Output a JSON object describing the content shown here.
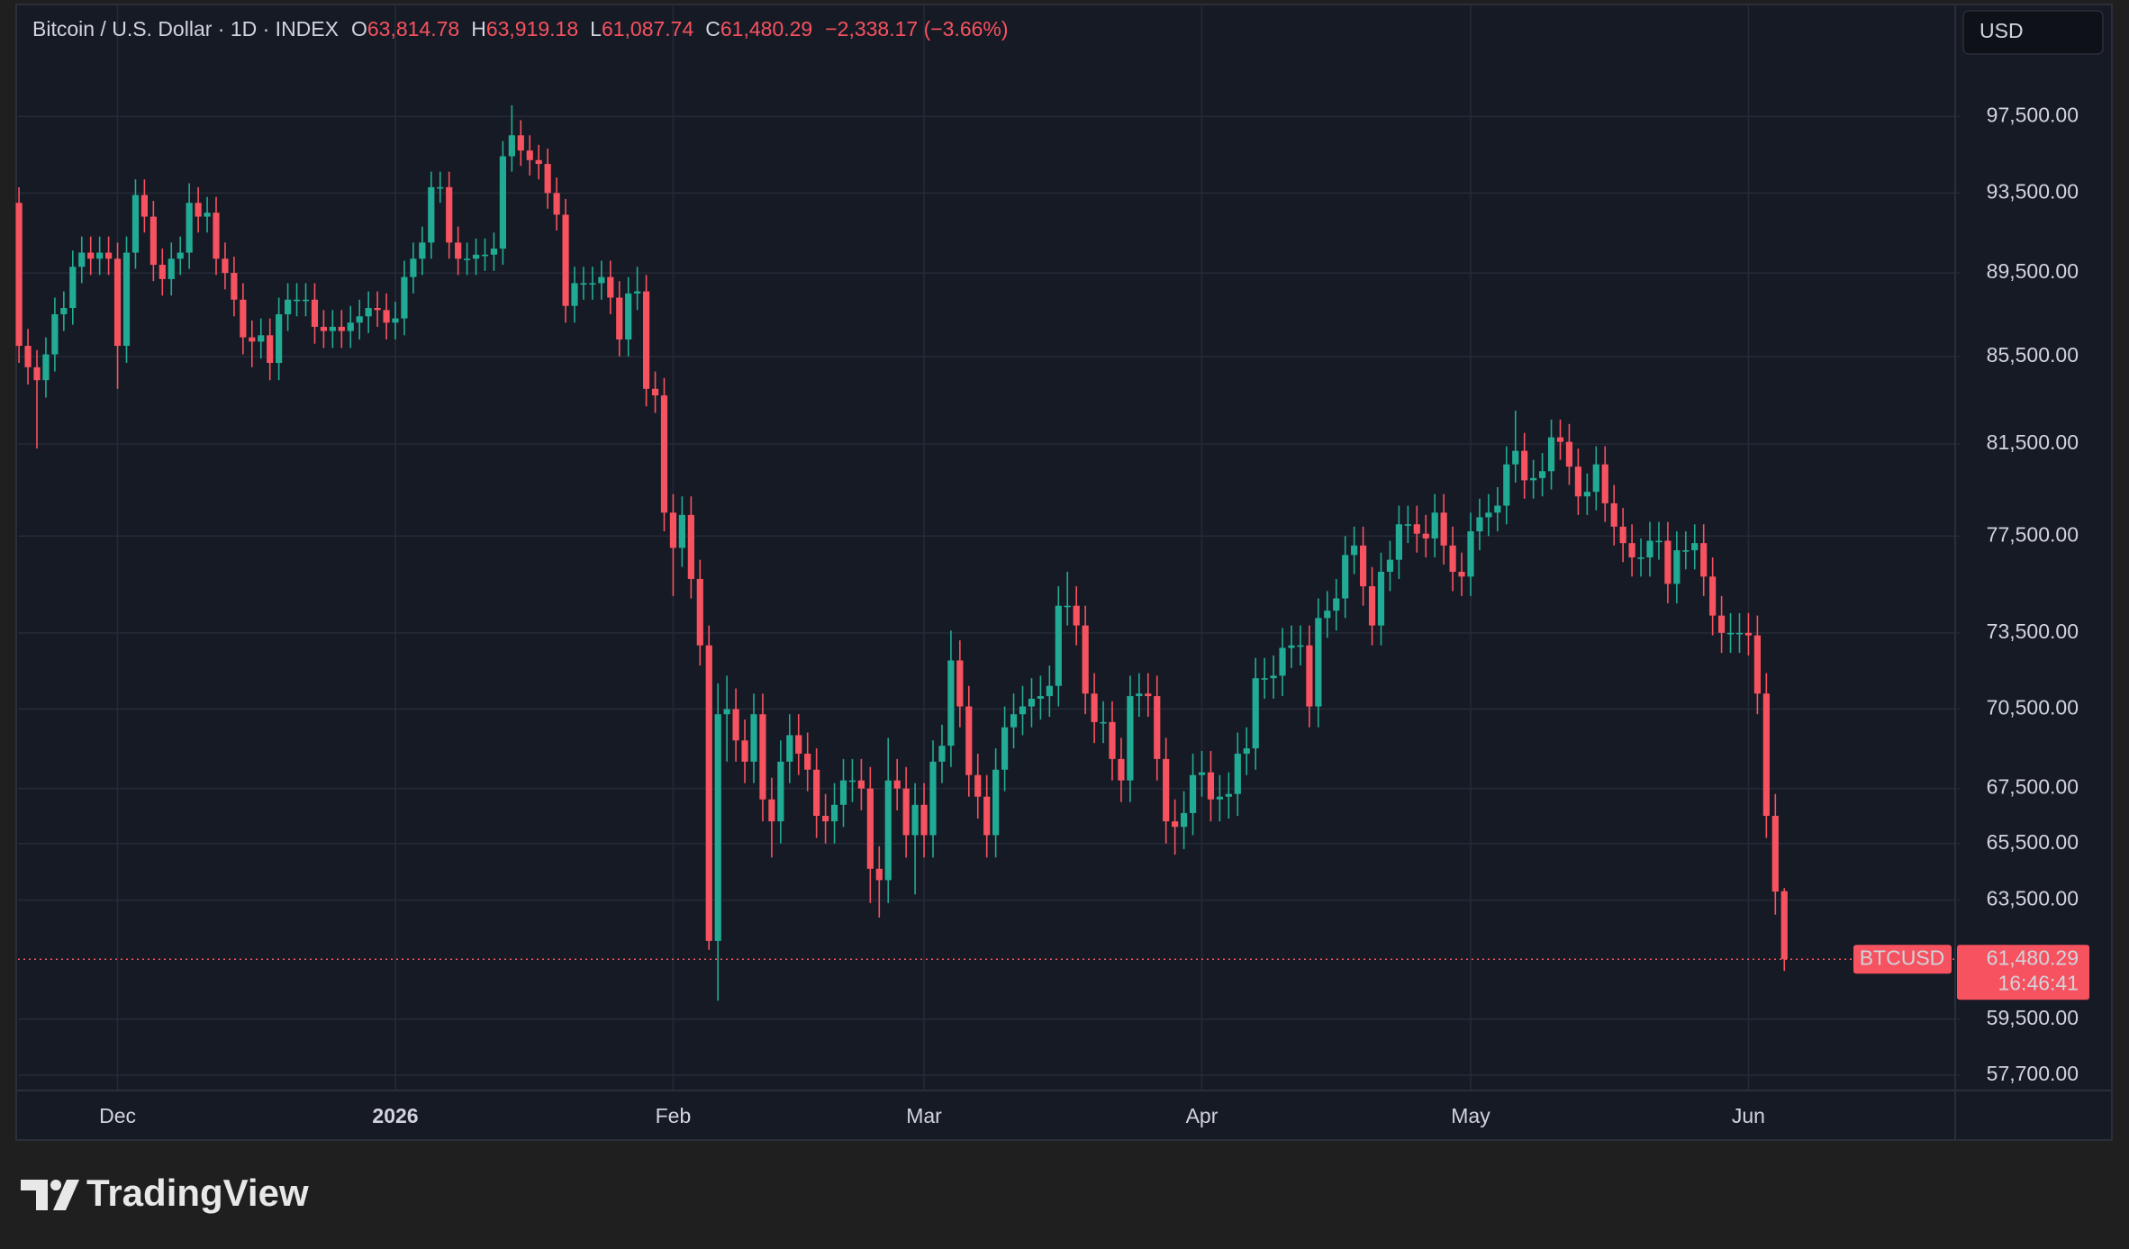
{
  "chart_data": {
    "type": "candlestick",
    "title": "Bitcoin / U.S. Dollar · 1D · INDEX",
    "ohlc_legend": [
      {
        "label": "O",
        "value": "63,814.78"
      },
      {
        "label": "H",
        "value": "63,919.18"
      },
      {
        "label": "L",
        "value": "61,087.74"
      },
      {
        "label": "C",
        "value": "61,480.29"
      }
    ],
    "change": "−2,338.17 (−3.66%)",
    "currency": "USD",
    "last_price_label": {
      "symbol": "BTCUSD",
      "price": "61,480.29",
      "countdown": "16:46:41"
    },
    "brand": "TradingView",
    "up_color": "#22ab94",
    "down_color": "#f7525f",
    "log_scale": true,
    "grid": true,
    "ylim": [
      57220,
      103660
    ],
    "yticks": [
      {
        "value": 97500,
        "label": "97,500.00"
      },
      {
        "value": 93500,
        "label": "93,500.00"
      },
      {
        "value": 89500,
        "label": "89,500.00"
      },
      {
        "value": 85500,
        "label": "85,500.00"
      },
      {
        "value": 81500,
        "label": "81,500.00"
      },
      {
        "value": 77500,
        "label": "77,500.00"
      },
      {
        "value": 73500,
        "label": "73,500.00"
      },
      {
        "value": 70500,
        "label": "70,500.00"
      },
      {
        "value": 67500,
        "label": "67,500.00"
      },
      {
        "value": 65500,
        "label": "65,500.00"
      },
      {
        "value": 63500,
        "label": "63,500.00"
      },
      {
        "value": 59500,
        "label": "59,500.00"
      },
      {
        "value": 57700,
        "label": "57,700.00"
      }
    ],
    "categories": [
      null,
      null,
      null,
      null,
      null,
      null,
      null,
      null,
      null,
      null,
      null,
      "Dec",
      null,
      null,
      null,
      null,
      null,
      null,
      null,
      null,
      null,
      null,
      null,
      null,
      null,
      null,
      null,
      null,
      null,
      null,
      null,
      null,
      null,
      null,
      null,
      null,
      null,
      null,
      null,
      null,
      null,
      null,
      "2026",
      null,
      null,
      null,
      null,
      null,
      null,
      null,
      null,
      null,
      null,
      null,
      null,
      null,
      null,
      null,
      null,
      null,
      null,
      null,
      null,
      null,
      null,
      null,
      null,
      null,
      null,
      null,
      null,
      null,
      null,
      "Feb",
      null,
      null,
      null,
      null,
      null,
      null,
      null,
      null,
      null,
      null,
      null,
      null,
      null,
      null,
      null,
      null,
      null,
      null,
      null,
      null,
      null,
      null,
      null,
      null,
      null,
      null,
      null,
      "Mar",
      null,
      null,
      null,
      null,
      null,
      null,
      null,
      null,
      null,
      null,
      null,
      null,
      null,
      null,
      null,
      null,
      null,
      null,
      null,
      null,
      null,
      null,
      null,
      null,
      null,
      null,
      null,
      null,
      null,
      null,
      "Apr",
      null,
      null,
      null,
      null,
      null,
      null,
      null,
      null,
      null,
      null,
      null,
      null,
      null,
      null,
      null,
      null,
      null,
      null,
      null,
      null,
      null,
      null,
      null,
      null,
      null,
      null,
      null,
      null,
      null,
      "May",
      null,
      null,
      null,
      null,
      null,
      null,
      null,
      null,
      null,
      null,
      null,
      null,
      null,
      null,
      null,
      null,
      null,
      null,
      null,
      null,
      null,
      null,
      null,
      null,
      null,
      null,
      null,
      null,
      null,
      null,
      "Jun",
      null,
      null,
      null,
      null
    ],
    "open": [
      93000,
      86000,
      85000,
      84400,
      85600,
      87500,
      87800,
      89800,
      90500,
      90200,
      90500,
      90200,
      86000,
      90500,
      93400,
      92300,
      89900,
      89200,
      90200,
      90500,
      93000,
      92300,
      92500,
      90200,
      89500,
      88200,
      86400,
      86200,
      86500,
      85200,
      87500,
      88200,
      88200,
      88200,
      86900,
      86700,
      86900,
      86700,
      87100,
      87400,
      87800,
      87700,
      87100,
      87300,
      89300,
      90200,
      91000,
      93800,
      93800,
      91000,
      90200,
      90200,
      90400,
      90400,
      90700,
      95400,
      96500,
      95700,
      95200,
      95000,
      93500,
      92400,
      87900,
      89000,
      89000,
      89000,
      89300,
      88300,
      86300,
      88500,
      88600,
      84000,
      83700,
      78500,
      77000,
      78400,
      75700,
      73000,
      62100,
      70300,
      70500,
      69300,
      68500,
      70300,
      67100,
      66300,
      68500,
      69500,
      68800,
      68200,
      66500,
      66300,
      66900,
      67800,
      67800,
      67500,
      64600,
      64200,
      67800,
      67500,
      65800,
      66900,
      65800,
      68500,
      69100,
      72400,
      70600,
      68000,
      67200,
      65800,
      68200,
      69800,
      70300,
      70600,
      70900,
      71000,
      71400,
      74600,
      74600,
      73800,
      71100,
      70000,
      70000,
      68600,
      67800,
      71000,
      71100,
      71000,
      68600,
      66300,
      66100,
      66600,
      68000,
      68100,
      67100,
      67200,
      67300,
      68800,
      69000,
      71700,
      71700,
      71800,
      72900,
      73000,
      73000,
      70600,
      74100,
      74400,
      74900,
      76700,
      77100,
      75400,
      73800,
      76000,
      76500,
      78000,
      78000,
      77600,
      77400,
      78500,
      77100,
      76000,
      75800,
      77700,
      78300,
      78500,
      78800,
      80600,
      81200,
      79900,
      80000,
      80300,
      81800,
      81600,
      80500,
      79200,
      79400,
      80600,
      78900,
      77900,
      77200,
      76600,
      76600,
      77300,
      77300,
      75500,
      76900,
      76900,
      77200,
      75800,
      74200,
      73500,
      73500,
      73500,
      73400,
      71100,
      66500,
      63814.78
    ],
    "high": [
      93800,
      86800,
      85800,
      86400,
      88300,
      88600,
      90600,
      91300,
      91300,
      91300,
      91300,
      91000,
      91300,
      94200,
      94200,
      93100,
      90700,
      91000,
      91300,
      94000,
      93800,
      93300,
      93300,
      91000,
      90300,
      89000,
      87200,
      87300,
      87300,
      88300,
      89000,
      89000,
      89000,
      89000,
      87700,
      87700,
      87700,
      87900,
      88200,
      88600,
      88600,
      88500,
      88100,
      90100,
      91000,
      91800,
      94600,
      94600,
      94600,
      91800,
      91000,
      91200,
      91200,
      91500,
      96200,
      98100,
      97300,
      96500,
      96000,
      95800,
      94300,
      93200,
      89800,
      89800,
      89800,
      90100,
      90100,
      89100,
      89300,
      89800,
      89400,
      84800,
      84500,
      79300,
      79200,
      79200,
      76500,
      73800,
      71500,
      71800,
      71300,
      70100,
      71100,
      71100,
      67900,
      69300,
      70300,
      70300,
      69600,
      69000,
      67300,
      67700,
      68600,
      68600,
      68600,
      68300,
      65400,
      69400,
      68600,
      68300,
      67700,
      67700,
      69300,
      69900,
      73600,
      73200,
      71400,
      68800,
      68000,
      69000,
      70600,
      71100,
      71400,
      71700,
      71800,
      72200,
      75400,
      76000,
      75400,
      74600,
      71900,
      70800,
      70800,
      69400,
      71800,
      71900,
      71900,
      71800,
      69400,
      67100,
      67400,
      68800,
      68900,
      68900,
      68000,
      68100,
      69600,
      69800,
      72500,
      72500,
      72600,
      73700,
      73800,
      73800,
      73800,
      74900,
      75200,
      75700,
      77500,
      77900,
      77900,
      76200,
      76800,
      77300,
      78800,
      78800,
      78800,
      78400,
      79300,
      79300,
      77900,
      76800,
      78500,
      79100,
      79300,
      79600,
      81400,
      83000,
      82000,
      80800,
      81100,
      82600,
      82600,
      82400,
      81300,
      80200,
      81400,
      81400,
      79700,
      78700,
      78000,
      77400,
      78100,
      78100,
      78100,
      77700,
      77700,
      78000,
      78000,
      76600,
      75000,
      74300,
      74300,
      74300,
      74200,
      71900,
      67300,
      63919.18
    ],
    "low": [
      85200,
      84200,
      81300,
      83600,
      84800,
      86700,
      87000,
      89000,
      89400,
      89400,
      89400,
      84000,
      85200,
      89700,
      91500,
      89100,
      88400,
      88400,
      89400,
      89700,
      91500,
      91500,
      89400,
      88700,
      87400,
      85600,
      85000,
      85400,
      84400,
      84400,
      86700,
      87400,
      87400,
      86100,
      85900,
      85900,
      85900,
      85900,
      86300,
      86600,
      86900,
      86300,
      86300,
      86500,
      88500,
      89400,
      90200,
      93000,
      90200,
      89400,
      89400,
      89400,
      89600,
      89600,
      89900,
      94600,
      94900,
      94400,
      94200,
      92700,
      91600,
      87100,
      87100,
      88200,
      88200,
      88200,
      87500,
      85500,
      85500,
      87700,
      83200,
      82900,
      77700,
      75000,
      76200,
      74900,
      72200,
      61800,
      60100,
      68500,
      68500,
      67700,
      67700,
      66300,
      65000,
      65500,
      67700,
      68000,
      67400,
      65700,
      65500,
      65500,
      66100,
      67000,
      66700,
      63400,
      62900,
      63400,
      66700,
      65000,
      63700,
      65000,
      65000,
      67700,
      68300,
      69800,
      67200,
      66400,
      65000,
      65000,
      67400,
      69000,
      69500,
      69800,
      70100,
      70200,
      70600,
      73800,
      73000,
      70300,
      69200,
      69200,
      67800,
      67000,
      67000,
      70200,
      70200,
      67800,
      65500,
      65100,
      65300,
      65800,
      67200,
      66300,
      66300,
      66400,
      66500,
      68000,
      68200,
      70900,
      70900,
      71000,
      72100,
      72200,
      69800,
      69800,
      73300,
      73600,
      74100,
      75900,
      74600,
      73000,
      73000,
      75200,
      75700,
      77200,
      76800,
      76600,
      76600,
      76300,
      75200,
      75000,
      75000,
      76900,
      77500,
      77700,
      78000,
      79800,
      79100,
      79100,
      79200,
      79500,
      80800,
      79700,
      78400,
      78400,
      78600,
      78100,
      77100,
      76400,
      75800,
      75800,
      75800,
      76500,
      74700,
      74700,
      76100,
      76100,
      75000,
      73400,
      72700,
      72700,
      72700,
      72600,
      70300,
      65700,
      63000,
      61087.74
    ],
    "close": [
      86000,
      85000,
      84400,
      85600,
      87500,
      87800,
      89800,
      90500,
      90200,
      90500,
      90200,
      86000,
      90500,
      93400,
      92300,
      89900,
      89200,
      90200,
      90500,
      93000,
      92300,
      92500,
      90200,
      89500,
      88200,
      86400,
      86200,
      86500,
      85200,
      87500,
      88200,
      88200,
      88200,
      86900,
      86700,
      86900,
      86700,
      87100,
      87400,
      87800,
      87700,
      87100,
      87300,
      89300,
      90200,
      91000,
      93800,
      93800,
      91000,
      90200,
      90200,
      90400,
      90400,
      90700,
      95400,
      96500,
      95700,
      95200,
      95000,
      93500,
      92400,
      87900,
      89000,
      89000,
      89000,
      89300,
      88300,
      86300,
      88500,
      88600,
      84000,
      83700,
      78500,
      77000,
      78400,
      75700,
      73000,
      62100,
      70300,
      70500,
      69300,
      68500,
      70300,
      67100,
      66300,
      68500,
      69500,
      68800,
      68200,
      66500,
      66300,
      66900,
      67800,
      67800,
      67500,
      64600,
      64200,
      67800,
      67500,
      65800,
      66900,
      65800,
      68500,
      69100,
      72400,
      70600,
      68000,
      67200,
      65800,
      68200,
      69800,
      70300,
      70600,
      70900,
      71000,
      71400,
      74600,
      74600,
      73800,
      71100,
      70000,
      70000,
      68600,
      67800,
      71000,
      71100,
      71000,
      68600,
      66300,
      66100,
      66600,
      68000,
      68100,
      67100,
      67200,
      67300,
      68800,
      69000,
      71700,
      71700,
      71800,
      72900,
      73000,
      73000,
      70600,
      74100,
      74400,
      74900,
      76700,
      77100,
      75400,
      73800,
      76000,
      76500,
      78000,
      78000,
      77600,
      77400,
      78500,
      77100,
      76000,
      75800,
      77700,
      78300,
      78500,
      78800,
      80600,
      81200,
      79900,
      80000,
      80300,
      81800,
      81600,
      80500,
      79200,
      79400,
      80600,
      78900,
      77900,
      77200,
      76600,
      76600,
      77300,
      77300,
      75500,
      76900,
      76900,
      77200,
      75800,
      74200,
      73500,
      73500,
      73500,
      73400,
      71100,
      66500,
      63800,
      61480.29
    ]
  }
}
